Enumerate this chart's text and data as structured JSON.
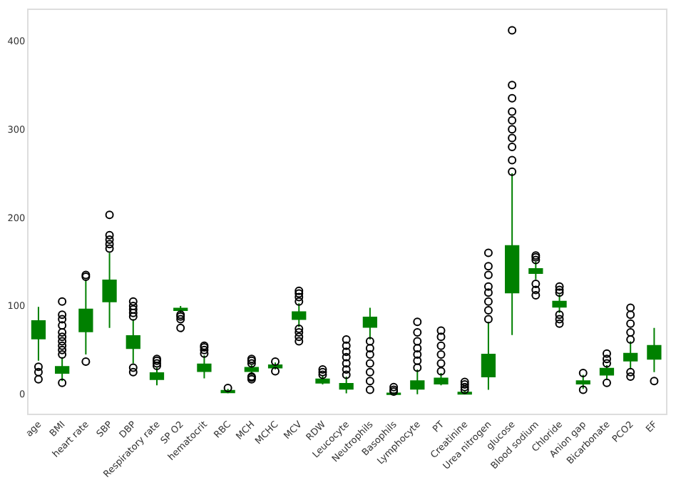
{
  "chart_data": {
    "type": "box",
    "categories": [
      "age",
      "BMI",
      "heart rate",
      "SBP",
      "DBP",
      "Respiratory rate",
      "SP O2",
      "hematocrit",
      "RBC",
      "MCH",
      "MCHC",
      "MCV",
      "RDW",
      "Leucocyte",
      "Neutrophils",
      "Basophils",
      "Lymphocyte",
      "PT",
      "Creatinine",
      "Urea nitrogen",
      "glucose",
      "Blood sodium",
      "Chloride",
      "Anion gap",
      "Bicarbonate",
      "PCO2",
      "EF"
    ],
    "color": "#008000",
    "ylim": [
      -22,
      435
    ],
    "yticks": [
      0,
      100,
      200,
      300,
      400
    ],
    "boxes": [
      {
        "low": 38,
        "q1": 63,
        "median": 72,
        "q3": 83,
        "high": 99,
        "outliers": [
          31,
          25,
          17
        ]
      },
      {
        "low": 15,
        "q1": 24,
        "median": 27,
        "q3": 31,
        "high": 42,
        "outliers": [
          13,
          45,
          50,
          55,
          60,
          65,
          70,
          78,
          85,
          90,
          105
        ]
      },
      {
        "low": 45,
        "q1": 71,
        "median": 83,
        "q3": 96,
        "high": 130,
        "outliers": [
          37,
          133,
          135
        ]
      },
      {
        "low": 75,
        "q1": 105,
        "median": 117,
        "q3": 129,
        "high": 160,
        "outliers": [
          165,
          170,
          175,
          180,
          203
        ]
      },
      {
        "low": 35,
        "q1": 52,
        "median": 58,
        "q3": 66,
        "high": 85,
        "outliers": [
          25,
          30,
          88,
          92,
          96,
          100,
          105
        ]
      },
      {
        "low": 10,
        "q1": 17,
        "median": 20,
        "q3": 24,
        "high": 30,
        "outliers": [
          32,
          35,
          38,
          40
        ]
      },
      {
        "low": 92,
        "q1": 95,
        "median": 96,
        "q3": 97,
        "high": 100,
        "outliers": [
          75,
          85,
          88,
          90
        ]
      },
      {
        "low": 18,
        "q1": 26,
        "median": 30,
        "q3": 34,
        "high": 44,
        "outliers": [
          46,
          50,
          53,
          55
        ]
      },
      {
        "low": 1,
        "q1": 2,
        "median": 3.5,
        "q3": 4,
        "high": 6,
        "outliers": [
          7
        ]
      },
      {
        "low": 22,
        "q1": 26,
        "median": 29,
        "q3": 30,
        "high": 33,
        "outliers": [
          17,
          19,
          20,
          35,
          38,
          40
        ]
      },
      {
        "low": 28,
        "q1": 30,
        "median": 32,
        "q3": 33,
        "high": 36,
        "outliers": [
          26,
          37
        ]
      },
      {
        "low": 76,
        "q1": 85,
        "median": 89,
        "q3": 93,
        "high": 103,
        "outliers": [
          60,
          65,
          70,
          74,
          105,
          110,
          114,
          117
        ]
      },
      {
        "low": 11,
        "q1": 13,
        "median": 15,
        "q3": 17,
        "high": 21,
        "outliers": [
          22,
          25,
          28
        ]
      },
      {
        "low": 1,
        "q1": 6,
        "median": 9,
        "q3": 12,
        "high": 20,
        "outliers": [
          22,
          28,
          35,
          42,
          48,
          55,
          62
        ]
      },
      {
        "low": 62,
        "q1": 76,
        "median": 82,
        "q3": 87,
        "high": 98,
        "outliers": [
          5,
          15,
          25,
          35,
          45,
          52,
          60
        ]
      },
      {
        "low": 0,
        "q1": 0,
        "median": 0.5,
        "q3": 1,
        "high": 2,
        "outliers": [
          3,
          5,
          8
        ]
      },
      {
        "low": 0,
        "q1": 6,
        "median": 10,
        "q3": 15,
        "high": 28,
        "outliers": [
          30,
          38,
          45,
          52,
          60,
          70,
          82
        ]
      },
      {
        "low": 10,
        "q1": 12,
        "median": 14,
        "q3": 18,
        "high": 24,
        "outliers": [
          26,
          35,
          45,
          55,
          65,
          72
        ]
      },
      {
        "low": 0,
        "q1": 0.5,
        "median": 1,
        "q3": 2,
        "high": 4,
        "outliers": [
          5,
          8,
          11,
          14
        ]
      },
      {
        "low": 5,
        "q1": 20,
        "median": 30,
        "q3": 45,
        "high": 82,
        "outliers": [
          85,
          95,
          105,
          115,
          122,
          135,
          145,
          160
        ]
      },
      {
        "low": 67,
        "q1": 115,
        "median": 140,
        "q3": 168,
        "high": 250,
        "outliers": [
          252,
          265,
          280,
          290,
          300,
          310,
          320,
          335,
          350,
          412
        ]
      },
      {
        "low": 130,
        "q1": 137,
        "median": 140,
        "q3": 142,
        "high": 150,
        "outliers": [
          112,
          118,
          125,
          152,
          155,
          157
        ]
      },
      {
        "low": 92,
        "q1": 99,
        "median": 103,
        "q3": 105,
        "high": 113,
        "outliers": [
          80,
          85,
          90,
          115,
          118,
          122
        ]
      },
      {
        "low": 6,
        "q1": 12,
        "median": 13,
        "q3": 15,
        "high": 22,
        "outliers": [
          5,
          24
        ]
      },
      {
        "low": 17,
        "q1": 22,
        "median": 25,
        "q3": 29,
        "high": 33,
        "outliers": [
          13,
          35,
          40,
          46
        ]
      },
      {
        "low": 28,
        "q1": 38,
        "median": 42,
        "q3": 46,
        "high": 60,
        "outliers": [
          20,
          25,
          62,
          70,
          80,
          90,
          98
        ]
      },
      {
        "low": 25,
        "q1": 40,
        "median": 48,
        "q3": 55,
        "high": 75,
        "outliers": [
          15
        ]
      }
    ]
  }
}
